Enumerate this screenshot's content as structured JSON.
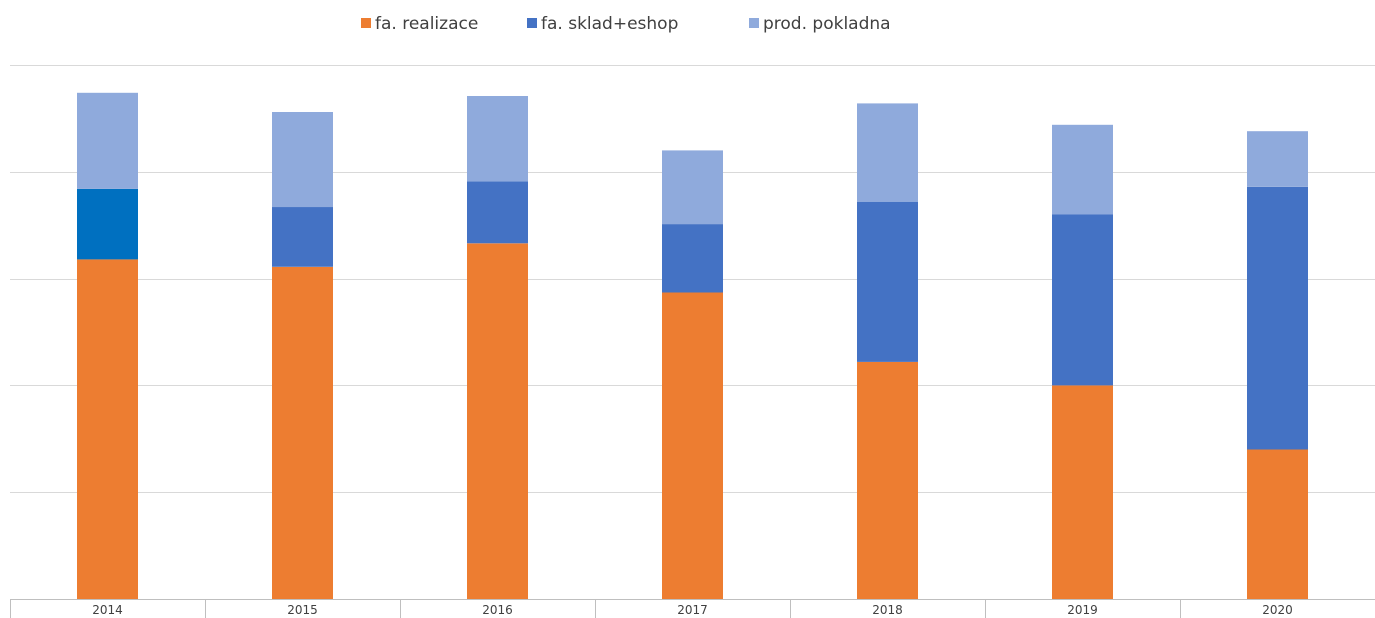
{
  "chart_data": {
    "type": "bar",
    "stacked": true,
    "categories": [
      "2014",
      "2015",
      "2016",
      "2017",
      "2018",
      "2019",
      "2020"
    ],
    "series": [
      {
        "name": "fa. realizace",
        "color": "#ED7D31",
        "values": [
          3.18,
          3.11,
          3.33,
          2.87,
          2.22,
          2.0,
          1.4
        ]
      },
      {
        "name": "fa. sklad+eshop",
        "color": "#4472C4",
        "values": [
          0.66,
          0.56,
          0.58,
          0.64,
          1.5,
          1.6,
          2.46
        ]
      },
      {
        "name": "prod. pokladna",
        "color": "#8FAADC",
        "values": [
          0.9,
          0.89,
          0.8,
          0.69,
          0.92,
          0.84,
          0.52
        ]
      }
    ],
    "bar_color_overrides": [
      {
        "series": "fa. sklad+eshop",
        "category": "2014",
        "color": "#0070C0"
      }
    ],
    "ylim": [
      0,
      5
    ],
    "y_ticks_labeled": false,
    "grid": true,
    "legend_position": "top",
    "title": "",
    "xlabel": "",
    "ylabel": ""
  }
}
